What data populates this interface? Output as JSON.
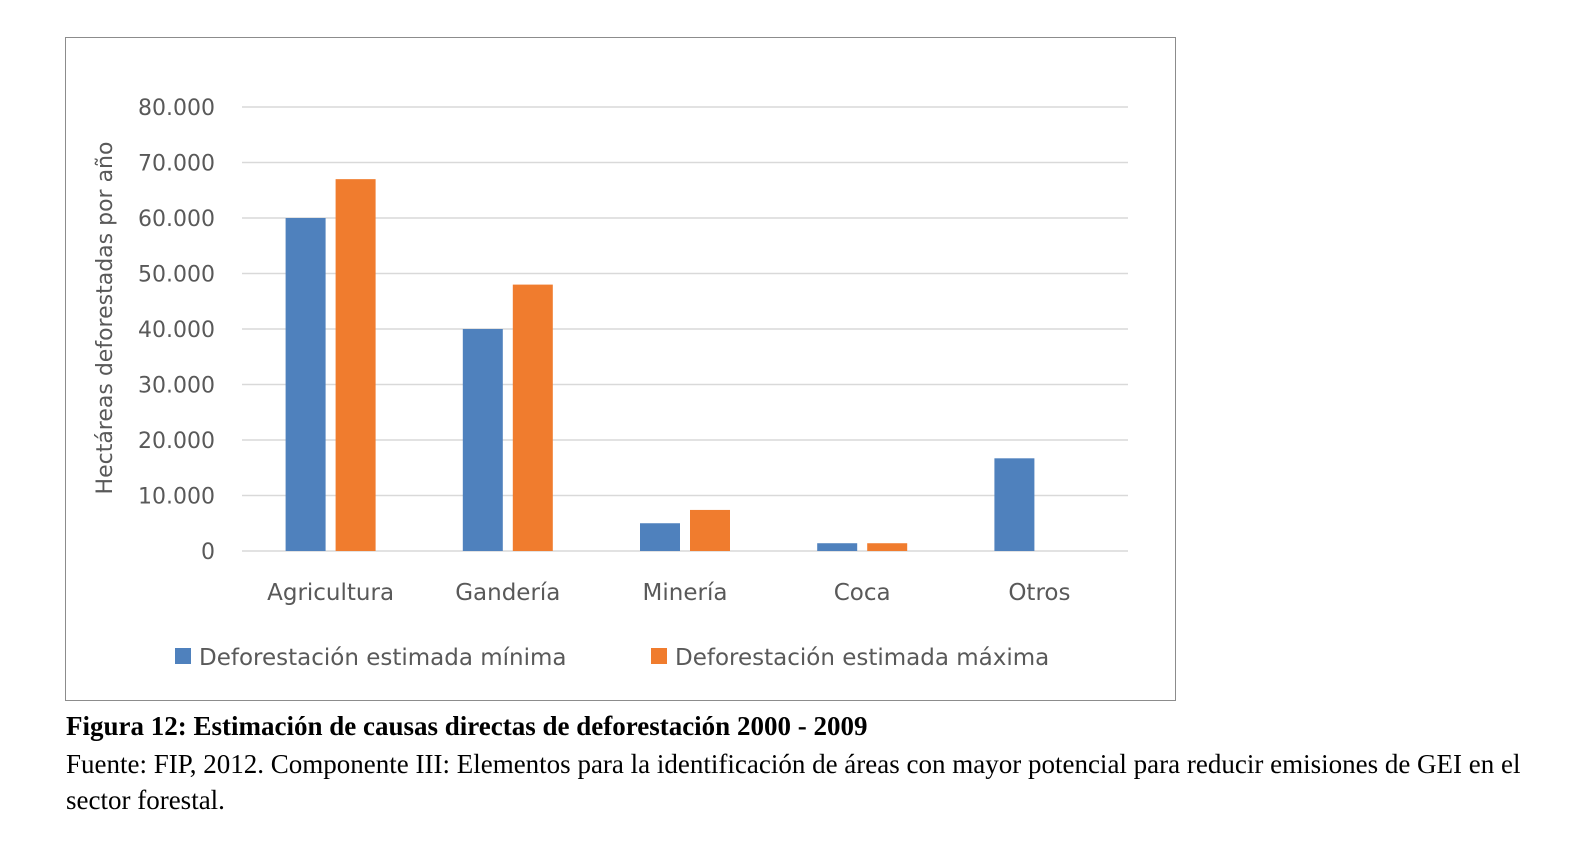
{
  "chart_data": {
    "type": "bar",
    "title": "",
    "xlabel": "",
    "ylabel": "Hectáreas deforestadas por año",
    "ylim": [
      0,
      80000
    ],
    "yticks": [
      0,
      10000,
      20000,
      30000,
      40000,
      50000,
      60000,
      70000,
      80000
    ],
    "ytick_labels": [
      "0",
      "10.000",
      "20.000",
      "30.000",
      "40.000",
      "50.000",
      "60.000",
      "70.000",
      "80.000"
    ],
    "grid": true,
    "legend_position": "bottom",
    "categories": [
      "Agricultura",
      "Gandería",
      "Minería",
      "Coca",
      "Otros"
    ],
    "series": [
      {
        "name": "Deforestación estimada mínima",
        "color": "#4f81bd",
        "values": [
          60000,
          40000,
          5000,
          1400,
          16700
        ]
      },
      {
        "name": "Deforestación estimada máxima",
        "color": "#f07c2e",
        "values": [
          67000,
          48000,
          7400,
          1400,
          0
        ]
      }
    ]
  },
  "caption": {
    "title": "Figura 12: Estimación de causas directas de deforestación 2000 - 2009",
    "source": "Fuente: FIP, 2012. Componente III: Elementos para la identificación de áreas con mayor potencial para reducir emisiones de GEI en el sector forestal."
  }
}
